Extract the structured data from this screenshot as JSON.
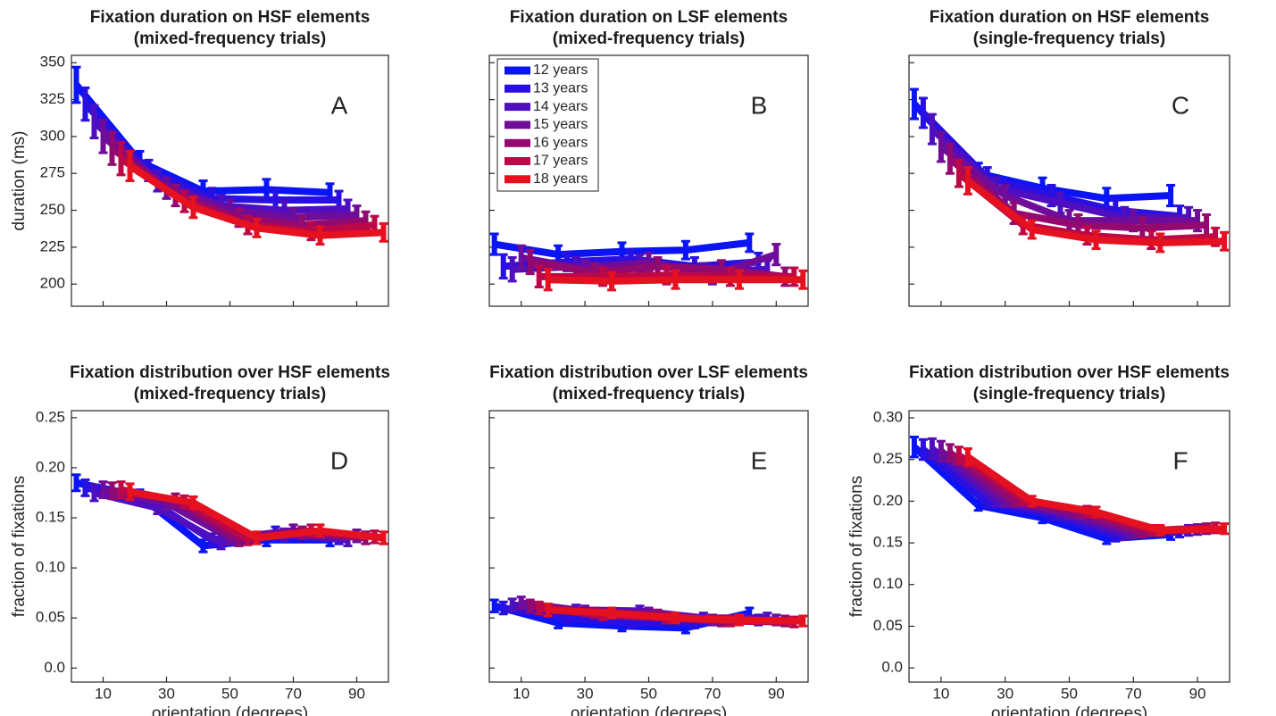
{
  "chart_data": [
    {
      "type": "line",
      "title": "Fixation duration on HSF elements",
      "subtitle": "(mixed-frequency trials)",
      "annotation": "A",
      "ylabel": "duration (ms)",
      "x": [
        10,
        30,
        50,
        70,
        90
      ],
      "xlim": [
        0,
        100
      ],
      "xticks": [
        10,
        30,
        50,
        70,
        90
      ],
      "show_xtick_labels": false,
      "ylim": [
        185,
        355
      ],
      "yticks": [
        200,
        225,
        250,
        275,
        300,
        325,
        350
      ],
      "show_ytick_labels": true,
      "series": [
        {
          "color": "#0a14f5",
          "values": [
            335,
            283,
            263,
            264,
            262
          ],
          "errors": [
            12,
            7,
            7,
            7,
            6
          ]
        },
        {
          "color": "#2a10e0",
          "values": [
            322,
            277,
            258,
            257,
            257
          ],
          "errors": [
            11,
            7,
            7,
            7,
            6
          ]
        },
        {
          "color": "#4f0ec0",
          "values": [
            310,
            270,
            253,
            250,
            251
          ],
          "errors": [
            11,
            7,
            7,
            6,
            6
          ]
        },
        {
          "color": "#6f0c9a",
          "values": [
            300,
            265,
            250,
            245,
            247
          ],
          "errors": [
            11,
            7,
            7,
            6,
            6
          ]
        },
        {
          "color": "#920a70",
          "values": [
            292,
            260,
            245,
            240,
            243
          ],
          "errors": [
            11,
            7,
            6,
            6,
            6
          ]
        },
        {
          "color": "#bb0848",
          "values": [
            285,
            256,
            240,
            236,
            240
          ],
          "errors": [
            11,
            7,
            6,
            6,
            6
          ]
        },
        {
          "color": "#e51020",
          "values": [
            280,
            252,
            238,
            233,
            235
          ],
          "errors": [
            10,
            7,
            6,
            6,
            6
          ]
        }
      ]
    },
    {
      "type": "line",
      "title": "Fixation duration on LSF elements",
      "subtitle": "(mixed-frequency trials)",
      "annotation": "B",
      "legend": "upper left",
      "x": [
        10,
        30,
        50,
        70,
        90
      ],
      "xlim": [
        0,
        100
      ],
      "xticks": [
        10,
        30,
        50,
        70,
        90
      ],
      "show_xtick_labels": false,
      "ylim": [
        185,
        355
      ],
      "yticks": [
        200,
        225,
        250,
        275,
        300,
        325,
        350
      ],
      "show_ytick_labels": false,
      "series": [
        {
          "name": "12 years",
          "color": "#0a14f5",
          "values": [
            227,
            220,
            222,
            223,
            228
          ],
          "errors": [
            7,
            6,
            6,
            6,
            6
          ]
        },
        {
          "name": "13 years",
          "color": "#2a10e0",
          "values": [
            212,
            215,
            217,
            212,
            215
          ],
          "errors": [
            8,
            6,
            6,
            6,
            6
          ]
        },
        {
          "name": "14 years",
          "color": "#4f0ec0",
          "values": [
            210,
            212,
            214,
            208,
            210
          ],
          "errors": [
            8,
            6,
            6,
            6,
            6
          ]
        },
        {
          "name": "15 years",
          "color": "#6f0c9a",
          "values": [
            218,
            210,
            215,
            206,
            220
          ],
          "errors": [
            8,
            6,
            6,
            6,
            7
          ]
        },
        {
          "name": "16 years",
          "color": "#920a70",
          "values": [
            215,
            208,
            212,
            210,
            205
          ],
          "errors": [
            8,
            6,
            6,
            6,
            6
          ]
        },
        {
          "name": "17 years",
          "color": "#bb0848",
          "values": [
            205,
            205,
            206,
            205,
            205
          ],
          "errors": [
            7,
            6,
            6,
            6,
            6
          ]
        },
        {
          "name": "18 years",
          "color": "#e51020",
          "values": [
            203,
            202,
            203,
            203,
            203
          ],
          "errors": [
            7,
            6,
            6,
            6,
            6
          ]
        }
      ]
    },
    {
      "type": "line",
      "title": "Fixation duration on HSF elements",
      "subtitle": "(single-frequency trials)",
      "annotation": "C",
      "x": [
        10,
        30,
        50,
        70,
        90
      ],
      "xlim": [
        0,
        100
      ],
      "xticks": [
        10,
        30,
        50,
        70,
        90
      ],
      "show_xtick_labels": false,
      "ylim": [
        185,
        355
      ],
      "yticks": [
        200,
        225,
        250,
        275,
        300,
        325,
        350
      ],
      "show_ytick_labels": false,
      "series": [
        {
          "color": "#0a14f5",
          "values": [
            322,
            275,
            265,
            258,
            260
          ],
          "errors": [
            10,
            7,
            7,
            7,
            7
          ]
        },
        {
          "color": "#2a10e0",
          "values": [
            316,
            272,
            260,
            250,
            246
          ],
          "errors": [
            10,
            7,
            7,
            7,
            7
          ]
        },
        {
          "color": "#4f0ec0",
          "values": [
            305,
            265,
            255,
            245,
            245
          ],
          "errors": [
            10,
            7,
            7,
            7,
            7
          ]
        },
        {
          "color": "#6f0c9a",
          "values": [
            293,
            260,
            243,
            243,
            243
          ],
          "errors": [
            10,
            7,
            7,
            7,
            7
          ]
        },
        {
          "color": "#920a70",
          "values": [
            285,
            248,
            240,
            238,
            240
          ],
          "errors": [
            10,
            7,
            7,
            7,
            7
          ]
        },
        {
          "color": "#bb0848",
          "values": [
            275,
            240,
            233,
            230,
            232
          ],
          "errors": [
            9,
            6,
            6,
            6,
            6
          ]
        },
        {
          "color": "#e51020",
          "values": [
            270,
            237,
            230,
            228,
            229
          ],
          "errors": [
            9,
            6,
            6,
            6,
            6
          ]
        }
      ]
    },
    {
      "type": "line",
      "title": "Fixation distribution over HSF elements",
      "subtitle": "(mixed-frequency trials)",
      "annotation": "D",
      "ylabel": "fraction of fixations",
      "xlabel": "orientation (degrees)",
      "x": [
        10,
        30,
        50,
        70,
        90
      ],
      "xlim": [
        0,
        100
      ],
      "xticks": [
        10,
        30,
        50,
        70,
        90
      ],
      "show_xtick_labels": true,
      "ylim": [
        -0.014,
        0.257
      ],
      "yticks": [
        {
          "value": 0,
          "label": "0.0"
        },
        0.05,
        {
          "value": 0.1,
          "label": "0.10"
        },
        0.15,
        {
          "value": 0.2,
          "label": "0.20"
        },
        0.25
      ],
      "show_ytick_labels": true,
      "series": [
        {
          "color": "#0a14f5",
          "values": [
            0.185,
            0.172,
            0.122,
            0.128,
            0.128
          ],
          "errors": [
            0.008,
            0.006,
            0.006,
            0.006,
            0.006
          ]
        },
        {
          "color": "#2a10e0",
          "values": [
            0.18,
            0.168,
            0.128,
            0.135,
            0.13
          ],
          "errors": [
            0.008,
            0.006,
            0.006,
            0.006,
            0.006
          ]
        },
        {
          "color": "#4f0ec0",
          "values": [
            0.175,
            0.16,
            0.125,
            0.133,
            0.128
          ],
          "errors": [
            0.008,
            0.006,
            0.006,
            0.006,
            0.006
          ]
        },
        {
          "color": "#6f0c9a",
          "values": [
            0.178,
            0.165,
            0.13,
            0.137,
            0.132
          ],
          "errors": [
            0.008,
            0.006,
            0.006,
            0.006,
            0.006
          ]
        },
        {
          "color": "#920a70",
          "values": [
            0.177,
            0.168,
            0.128,
            0.135,
            0.13
          ],
          "errors": [
            0.008,
            0.006,
            0.006,
            0.006,
            0.006
          ]
        },
        {
          "color": "#bb0848",
          "values": [
            0.178,
            0.166,
            0.129,
            0.137,
            0.131
          ],
          "errors": [
            0.008,
            0.006,
            0.006,
            0.006,
            0.006
          ]
        },
        {
          "color": "#e51020",
          "values": [
            0.176,
            0.165,
            0.13,
            0.137,
            0.13
          ],
          "errors": [
            0.008,
            0.006,
            0.006,
            0.006,
            0.006
          ]
        }
      ]
    },
    {
      "type": "line",
      "title": "Fixation distribution over LSF elements",
      "subtitle": "(mixed-frequency trials)",
      "annotation": "E",
      "xlabel": "orientation (degrees)",
      "x": [
        10,
        30,
        50,
        70,
        90
      ],
      "xlim": [
        0,
        100
      ],
      "xticks": [
        10,
        30,
        50,
        70,
        90
      ],
      "show_xtick_labels": true,
      "ylim": [
        -0.014,
        0.257
      ],
      "yticks": [
        0,
        0.05,
        0.1,
        0.15,
        0.2,
        0.25
      ],
      "show_ytick_labels": false,
      "series": [
        {
          "color": "#0a14f5",
          "values": [
            0.062,
            0.045,
            0.042,
            0.04,
            0.055
          ],
          "errors": [
            0.006,
            0.005,
            0.005,
            0.005,
            0.005
          ]
        },
        {
          "color": "#2a10e0",
          "values": [
            0.06,
            0.05,
            0.045,
            0.045,
            0.048
          ],
          "errors": [
            0.006,
            0.005,
            0.005,
            0.005,
            0.005
          ]
        },
        {
          "color": "#4f0ec0",
          "values": [
            0.063,
            0.058,
            0.057,
            0.05,
            0.05
          ],
          "errors": [
            0.006,
            0.005,
            0.005,
            0.005,
            0.005
          ]
        },
        {
          "color": "#6f0c9a",
          "values": [
            0.065,
            0.057,
            0.055,
            0.048,
            0.048
          ],
          "errors": [
            0.006,
            0.005,
            0.005,
            0.005,
            0.005
          ]
        },
        {
          "color": "#920a70",
          "values": [
            0.062,
            0.055,
            0.053,
            0.047,
            0.047
          ],
          "errors": [
            0.006,
            0.005,
            0.005,
            0.005,
            0.005
          ]
        },
        {
          "color": "#bb0848",
          "values": [
            0.06,
            0.053,
            0.05,
            0.047,
            0.046
          ],
          "errors": [
            0.006,
            0.005,
            0.005,
            0.005,
            0.005
          ]
        },
        {
          "color": "#e51020",
          "values": [
            0.058,
            0.055,
            0.05,
            0.048,
            0.047
          ],
          "errors": [
            0.006,
            0.005,
            0.005,
            0.005,
            0.005
          ]
        }
      ]
    },
    {
      "type": "line",
      "title": "Fixation distribution over HSF elements",
      "subtitle": "(single-frequency trials)",
      "annotation": "F",
      "ylabel": "fraction of fixations",
      "xlabel": "orientation (degrees)",
      "x": [
        10,
        30,
        50,
        70,
        90
      ],
      "xlim": [
        0,
        100
      ],
      "xticks": [
        10,
        30,
        50,
        70,
        90
      ],
      "show_xtick_labels": true,
      "ylim": [
        -0.017,
        0.3086
      ],
      "yticks": [
        {
          "value": 0,
          "label": "0.0"
        },
        0.05,
        {
          "value": 0.1,
          "label": "0.10"
        },
        0.15,
        {
          "value": 0.2,
          "label": "0.20"
        },
        0.25,
        {
          "value": 0.3,
          "label": "0.30"
        }
      ],
      "show_ytick_labels": true,
      "series": [
        {
          "color": "#0a14f5",
          "values": [
            0.265,
            0.195,
            0.18,
            0.155,
            0.16
          ],
          "errors": [
            0.012,
            0.006,
            0.006,
            0.006,
            0.006
          ]
        },
        {
          "color": "#2a10e0",
          "values": [
            0.262,
            0.198,
            0.183,
            0.158,
            0.163
          ],
          "errors": [
            0.012,
            0.006,
            0.006,
            0.006,
            0.006
          ]
        },
        {
          "color": "#4f0ec0",
          "values": [
            0.263,
            0.2,
            0.185,
            0.16,
            0.165
          ],
          "errors": [
            0.012,
            0.006,
            0.006,
            0.006,
            0.006
          ]
        },
        {
          "color": "#6f0c9a",
          "values": [
            0.26,
            0.2,
            0.185,
            0.162,
            0.166
          ],
          "errors": [
            0.012,
            0.006,
            0.006,
            0.006,
            0.006
          ]
        },
        {
          "color": "#920a70",
          "values": [
            0.258,
            0.2,
            0.187,
            0.163,
            0.167
          ],
          "errors": [
            0.01,
            0.006,
            0.006,
            0.006,
            0.006
          ]
        },
        {
          "color": "#bb0848",
          "values": [
            0.255,
            0.202,
            0.188,
            0.165,
            0.168
          ],
          "errors": [
            0.01,
            0.006,
            0.006,
            0.006,
            0.006
          ]
        },
        {
          "color": "#e51020",
          "values": [
            0.253,
            0.2,
            0.187,
            0.165,
            0.167
          ],
          "errors": [
            0.01,
            0.006,
            0.006,
            0.006,
            0.006
          ]
        }
      ]
    }
  ]
}
